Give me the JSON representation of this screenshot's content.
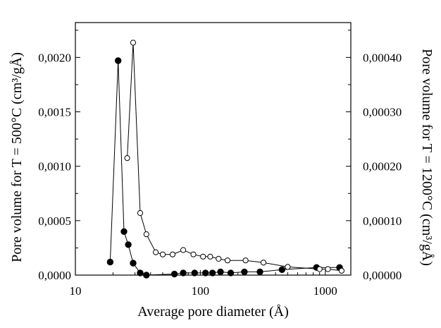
{
  "chart_data": {
    "type": "scatter",
    "xlabel": "Average pore diameter (Å)",
    "ylabel_left": "Pore volume for T = 500°C (cm³/gÅ)",
    "ylabel_right": "Pore volume for T = 1200°C (cm³/gÅ)",
    "x_scale": "log",
    "xlim": [
      10,
      1600
    ],
    "x_ticks": [
      {
        "value": 10,
        "label": "10"
      },
      {
        "value": 100,
        "label": "100"
      },
      {
        "value": 1000,
        "label": "1000"
      }
    ],
    "ylim_left": [
      0,
      0.00232
    ],
    "y_ticks_left": [
      {
        "value": 0,
        "label": "0,0000"
      },
      {
        "value": 0.0005,
        "label": "0,0005"
      },
      {
        "value": 0.001,
        "label": "0,0010"
      },
      {
        "value": 0.0015,
        "label": "0,0015"
      },
      {
        "value": 0.002,
        "label": "0,0020"
      }
    ],
    "ylim_right": [
      0,
      0.000464
    ],
    "y_ticks_right": [
      {
        "value": 0,
        "label": "0,00000"
      },
      {
        "value": 0.0001,
        "label": "0,00010"
      },
      {
        "value": 0.0002,
        "label": "0,00020"
      },
      {
        "value": 0.0003,
        "label": "0,00030"
      },
      {
        "value": 0.0004,
        "label": "0,00040"
      }
    ],
    "grid": false,
    "series": [
      {
        "axis": "left",
        "marker": "filled-circle",
        "x": [
          19,
          22,
          24.5,
          26.5,
          29,
          33,
          37,
          62,
          73,
          90,
          110,
          125,
          145,
          175,
          225,
          300,
          450,
          850,
          1300
        ],
        "y": [
          0.00012,
          0.00197,
          0.0004,
          0.00028,
          0.00011,
          2e-05,
          0.0,
          1e-05,
          2e-05,
          2e-05,
          2e-05,
          2e-05,
          3e-05,
          2e-05,
          3e-05,
          3e-05,
          5e-05,
          7e-05,
          7e-05
        ]
      },
      {
        "axis": "right",
        "marker": "open-circle",
        "x": [
          26,
          29,
          33,
          37,
          44,
          50,
          60,
          73,
          88,
          105,
          120,
          140,
          165,
          230,
          320,
          500,
          900,
          1050,
          1350
        ],
        "y": [
          0.000215,
          0.000427,
          0.000114,
          7.5e-05,
          4.2e-05,
          3.8e-05,
          3.8e-05,
          4.6e-05,
          3.8e-05,
          3.4e-05,
          3.4e-05,
          3e-05,
          2.7e-05,
          2.7e-05,
          2.3e-05,
          1.5e-05,
          1.1e-05,
          1.1e-05,
          8e-06
        ]
      }
    ]
  }
}
